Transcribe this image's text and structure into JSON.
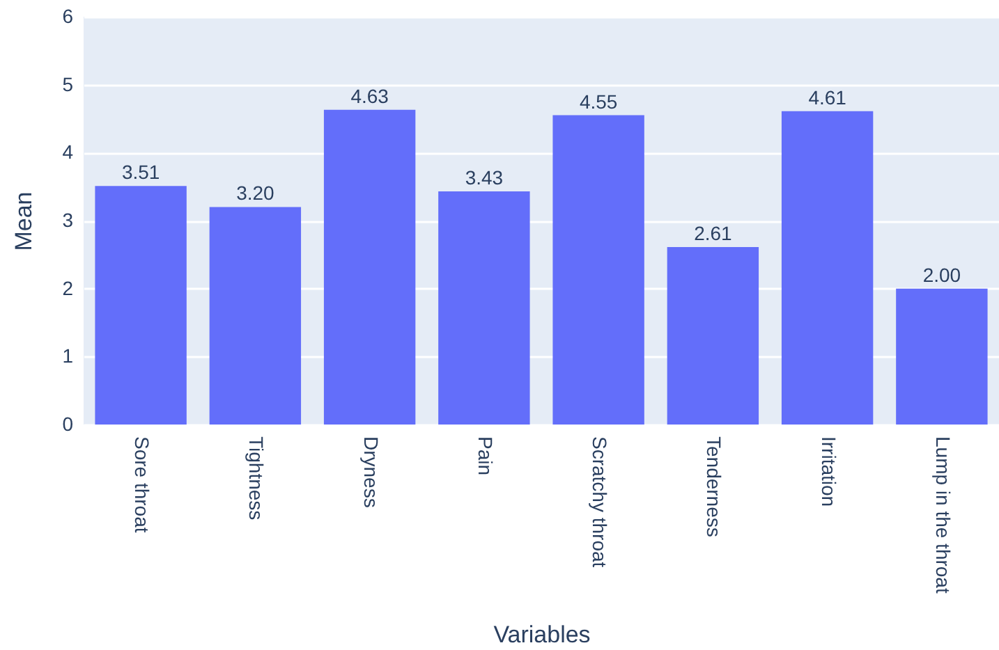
{
  "chart_data": {
    "type": "bar",
    "xlabel": "Variables",
    "ylabel": "Mean",
    "categories": [
      "Sore throat",
      "Tightness",
      "Dryness",
      "Pain",
      "Scratchy throat",
      "Tenderness",
      "Irritation",
      "Lump in the throat"
    ],
    "values": [
      3.51,
      3.2,
      4.63,
      3.43,
      4.55,
      2.61,
      4.61,
      2.0
    ],
    "value_labels": [
      "3.51",
      "3.20",
      "4.63",
      "3.43",
      "4.55",
      "2.61",
      "4.61",
      "2.00"
    ],
    "color": "#636efa",
    "ylim": [
      0,
      6
    ],
    "yticks": [
      0,
      1,
      2,
      3,
      4,
      5,
      6
    ],
    "grid": "y"
  }
}
